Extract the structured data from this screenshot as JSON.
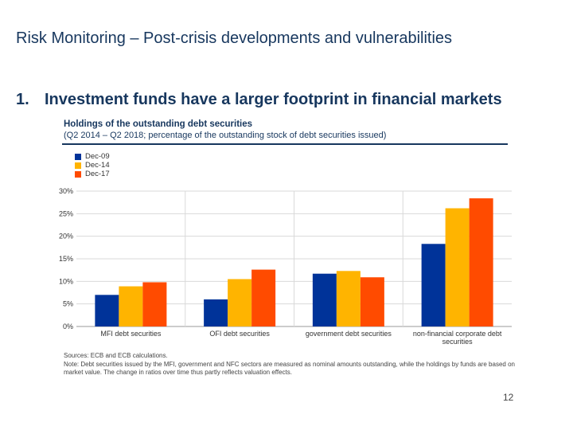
{
  "slide": {
    "title": "Risk Monitoring – Post-crisis developments and vulnerabilities",
    "subtitle_number": "1.",
    "subtitle_text": "Investment funds have a larger footprint in financial markets",
    "page_number": "12"
  },
  "chart_data": {
    "type": "bar",
    "title": "Holdings of the outstanding debt securities",
    "subtitle": "(Q2 2014 – Q2 2018; percentage of the outstanding stock of debt securities issued)",
    "categories": [
      "MFI debt securities",
      "OFI debt securities",
      "government debt securities",
      "non-financial corporate debt securities"
    ],
    "series": [
      {
        "name": "Dec-09",
        "color": "#003399",
        "values": [
          7,
          6,
          11.7,
          18.3
        ]
      },
      {
        "name": "Dec-14",
        "color": "#ffb400",
        "values": [
          8.9,
          10.5,
          12.3,
          26.2
        ]
      },
      {
        "name": "Dec-17",
        "color": "#ff4b00",
        "values": [
          9.8,
          12.6,
          10.9,
          28.4
        ]
      }
    ],
    "yticks": [
      "0%",
      "5%",
      "10%",
      "15%",
      "20%",
      "25%",
      "30%"
    ],
    "ylim": [
      0,
      30
    ],
    "grid": true,
    "legend_position": "top-left",
    "source": "Sources: ECB and ECB calculations.",
    "note": "Note: Debt securities issued by the MFI, government and NFC sectors are measured as nominal amounts outstanding, while the holdings by funds are based on market value. The change in ratios over time thus partly reflects valuation effects."
  }
}
